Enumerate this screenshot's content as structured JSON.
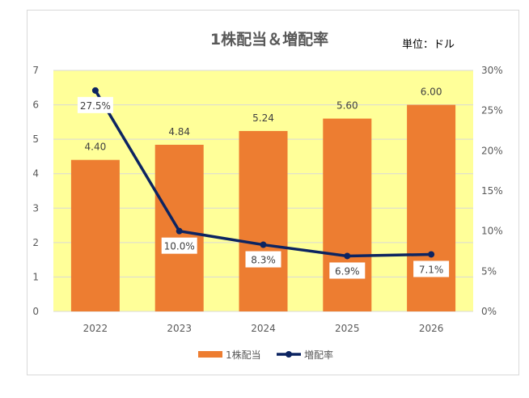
{
  "chart_data": {
    "type": "bar+line",
    "title": "1株配当＆増配率",
    "unit_note": "単位：ドル",
    "categories": [
      "2022",
      "2023",
      "2024",
      "2025",
      "2026"
    ],
    "series": [
      {
        "name": "1株配当",
        "type": "bar",
        "axis": "left",
        "values": [
          4.4,
          4.84,
          5.24,
          5.6,
          6.0
        ],
        "labels": [
          "4.40",
          "4.84",
          "5.24",
          "5.60",
          "6.00"
        ],
        "color": "#ED7D31"
      },
      {
        "name": "増配率",
        "type": "line",
        "axis": "right",
        "values": [
          27.5,
          10.0,
          8.3,
          6.9,
          7.1
        ],
        "labels": [
          "27.5%",
          "10.0%",
          "8.3%",
          "6.9%",
          "7.1%"
        ],
        "color": "#0C2461"
      }
    ],
    "left_axis": {
      "ylim": [
        0,
        7
      ],
      "ticks": [
        "0",
        "1",
        "2",
        "3",
        "4",
        "5",
        "6",
        "7"
      ]
    },
    "right_axis": {
      "ylim": [
        0,
        30
      ],
      "ticks": [
        "0%",
        "5%",
        "10%",
        "15%",
        "20%",
        "25%",
        "30%"
      ]
    },
    "plot_background": "#FFFF99",
    "grid": true,
    "legend": "bottom"
  }
}
